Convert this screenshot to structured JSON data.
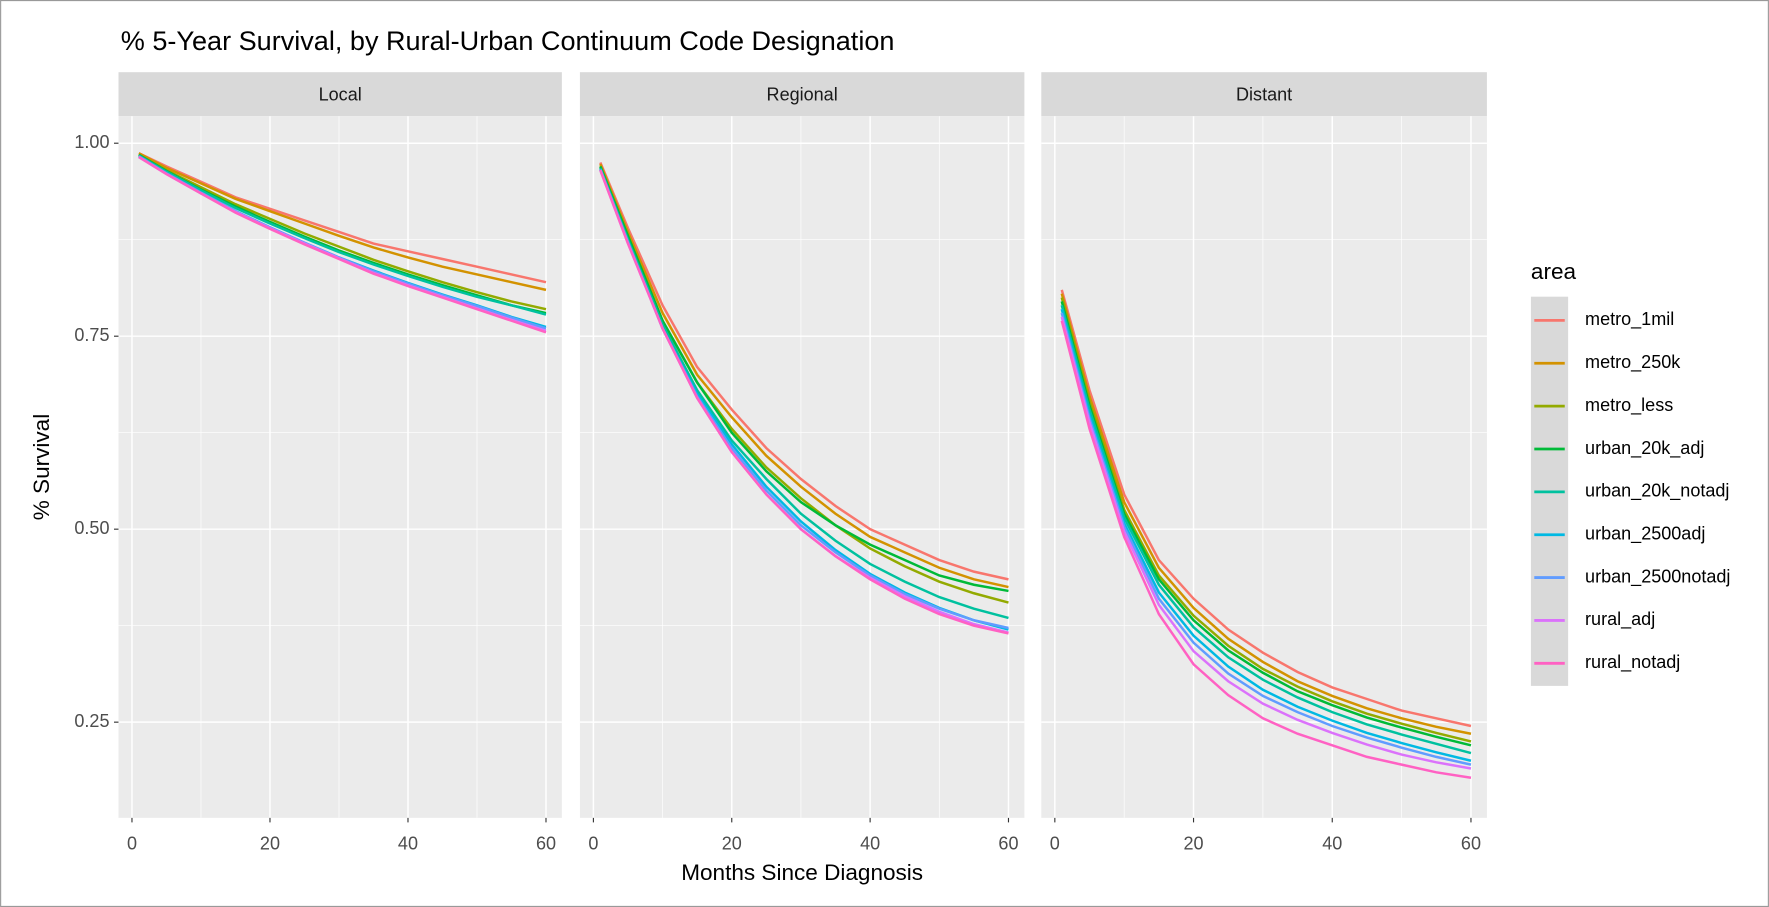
{
  "chart_data": {
    "type": "line",
    "title": "% 5-Year Survival, by Rural-Urban Continuum Code Designation",
    "x_label": "Months Since Diagnosis",
    "y_label": "% Survival",
    "legend_title": "area",
    "grid": true,
    "x": [
      1,
      5,
      10,
      15,
      20,
      25,
      30,
      35,
      40,
      45,
      50,
      55,
      60
    ],
    "xlim": [
      -1.95,
      62.3
    ],
    "xticks": [
      0,
      20,
      40,
      60
    ],
    "ylim": [
      0.126,
      1.035
    ],
    "yticks": [
      {
        "value": 1.0,
        "label": "1.00"
      },
      {
        "value": 0.75,
        "label": "0.75"
      },
      {
        "value": 0.5,
        "label": "0.50"
      },
      {
        "value": 0.25,
        "label": "0.25"
      }
    ],
    "series": [
      {
        "name": "metro_1mil",
        "color": "#F8766D"
      },
      {
        "name": "metro_250k",
        "color": "#D39200"
      },
      {
        "name": "metro_less",
        "color": "#93AA00"
      },
      {
        "name": "urban_20k_adj",
        "color": "#00BA38"
      },
      {
        "name": "urban_20k_notadj",
        "color": "#00C19F"
      },
      {
        "name": "urban_2500adj",
        "color": "#00B9E3"
      },
      {
        "name": "urban_2500notadj",
        "color": "#619CFF"
      },
      {
        "name": "rural_adj",
        "color": "#DB72FB"
      },
      {
        "name": "rural_notadj",
        "color": "#FF61C3"
      }
    ],
    "facets": [
      {
        "title": "Local",
        "values": [
          [
            0.987,
            0.97,
            0.95,
            0.93,
            0.915,
            0.9,
            0.885,
            0.87,
            0.86,
            0.85,
            0.84,
            0.83,
            0.82
          ],
          [
            0.987,
            0.968,
            0.948,
            0.928,
            0.912,
            0.896,
            0.88,
            0.865,
            0.852,
            0.84,
            0.83,
            0.82,
            0.81
          ],
          [
            0.985,
            0.965,
            0.943,
            0.921,
            0.902,
            0.883,
            0.866,
            0.849,
            0.834,
            0.82,
            0.807,
            0.795,
            0.785
          ],
          [
            0.985,
            0.964,
            0.94,
            0.918,
            0.898,
            0.879,
            0.861,
            0.845,
            0.83,
            0.816,
            0.803,
            0.79,
            0.78
          ],
          [
            0.984,
            0.963,
            0.939,
            0.916,
            0.896,
            0.877,
            0.859,
            0.843,
            0.828,
            0.814,
            0.801,
            0.79,
            0.778
          ],
          [
            0.983,
            0.961,
            0.936,
            0.912,
            0.891,
            0.871,
            0.852,
            0.835,
            0.819,
            0.804,
            0.79,
            0.775,
            0.762
          ],
          [
            0.983,
            0.961,
            0.936,
            0.912,
            0.891,
            0.871,
            0.852,
            0.834,
            0.818,
            0.803,
            0.789,
            0.774,
            0.76
          ],
          [
            0.982,
            0.96,
            0.935,
            0.911,
            0.89,
            0.87,
            0.851,
            0.832,
            0.816,
            0.801,
            0.786,
            0.771,
            0.757
          ],
          [
            0.982,
            0.96,
            0.935,
            0.91,
            0.889,
            0.869,
            0.85,
            0.831,
            0.815,
            0.8,
            0.785,
            0.77,
            0.755
          ]
        ]
      },
      {
        "title": "Regional",
        "values": [
          [
            0.975,
            0.89,
            0.79,
            0.71,
            0.655,
            0.605,
            0.565,
            0.53,
            0.5,
            0.48,
            0.46,
            0.445,
            0.435
          ],
          [
            0.973,
            0.885,
            0.78,
            0.7,
            0.645,
            0.595,
            0.555,
            0.52,
            0.49,
            0.47,
            0.45,
            0.435,
            0.425
          ],
          [
            0.97,
            0.88,
            0.77,
            0.69,
            0.63,
            0.58,
            0.54,
            0.505,
            0.475,
            0.452,
            0.432,
            0.417,
            0.405
          ],
          [
            0.97,
            0.88,
            0.77,
            0.69,
            0.625,
            0.575,
            0.535,
            0.505,
            0.48,
            0.46,
            0.44,
            0.428,
            0.42
          ],
          [
            0.968,
            0.875,
            0.765,
            0.68,
            0.615,
            0.565,
            0.52,
            0.485,
            0.455,
            0.432,
            0.412,
            0.397,
            0.385
          ],
          [
            0.966,
            0.872,
            0.76,
            0.675,
            0.61,
            0.555,
            0.51,
            0.473,
            0.442,
            0.418,
            0.398,
            0.382,
            0.37
          ],
          [
            0.966,
            0.872,
            0.76,
            0.672,
            0.605,
            0.55,
            0.505,
            0.47,
            0.44,
            0.416,
            0.397,
            0.382,
            0.372
          ],
          [
            0.965,
            0.87,
            0.76,
            0.67,
            0.6,
            0.545,
            0.5,
            0.465,
            0.437,
            0.413,
            0.393,
            0.377,
            0.366
          ],
          [
            0.965,
            0.87,
            0.76,
            0.67,
            0.6,
            0.545,
            0.5,
            0.465,
            0.435,
            0.41,
            0.39,
            0.375,
            0.365
          ]
        ]
      },
      {
        "title": "Distant",
        "values": [
          [
            0.81,
            0.68,
            0.545,
            0.46,
            0.41,
            0.37,
            0.34,
            0.315,
            0.295,
            0.28,
            0.265,
            0.255,
            0.245
          ],
          [
            0.805,
            0.672,
            0.535,
            0.45,
            0.398,
            0.358,
            0.328,
            0.303,
            0.284,
            0.268,
            0.255,
            0.244,
            0.235
          ],
          [
            0.8,
            0.665,
            0.525,
            0.44,
            0.388,
            0.349,
            0.319,
            0.296,
            0.277,
            0.261,
            0.248,
            0.236,
            0.225
          ],
          [
            0.795,
            0.66,
            0.52,
            0.435,
            0.382,
            0.343,
            0.314,
            0.29,
            0.272,
            0.256,
            0.243,
            0.231,
            0.22
          ],
          [
            0.79,
            0.655,
            0.515,
            0.428,
            0.373,
            0.334,
            0.305,
            0.282,
            0.263,
            0.247,
            0.234,
            0.222,
            0.21
          ],
          [
            0.785,
            0.648,
            0.508,
            0.418,
            0.362,
            0.322,
            0.292,
            0.27,
            0.252,
            0.236,
            0.223,
            0.211,
            0.2
          ],
          [
            0.78,
            0.643,
            0.503,
            0.41,
            0.353,
            0.313,
            0.284,
            0.263,
            0.245,
            0.23,
            0.217,
            0.205,
            0.195
          ],
          [
            0.775,
            0.638,
            0.497,
            0.402,
            0.342,
            0.303,
            0.274,
            0.253,
            0.236,
            0.221,
            0.208,
            0.198,
            0.19
          ],
          [
            0.77,
            0.63,
            0.49,
            0.39,
            0.325,
            0.285,
            0.255,
            0.235,
            0.22,
            0.205,
            0.195,
            0.185,
            0.178
          ]
        ]
      }
    ]
  }
}
